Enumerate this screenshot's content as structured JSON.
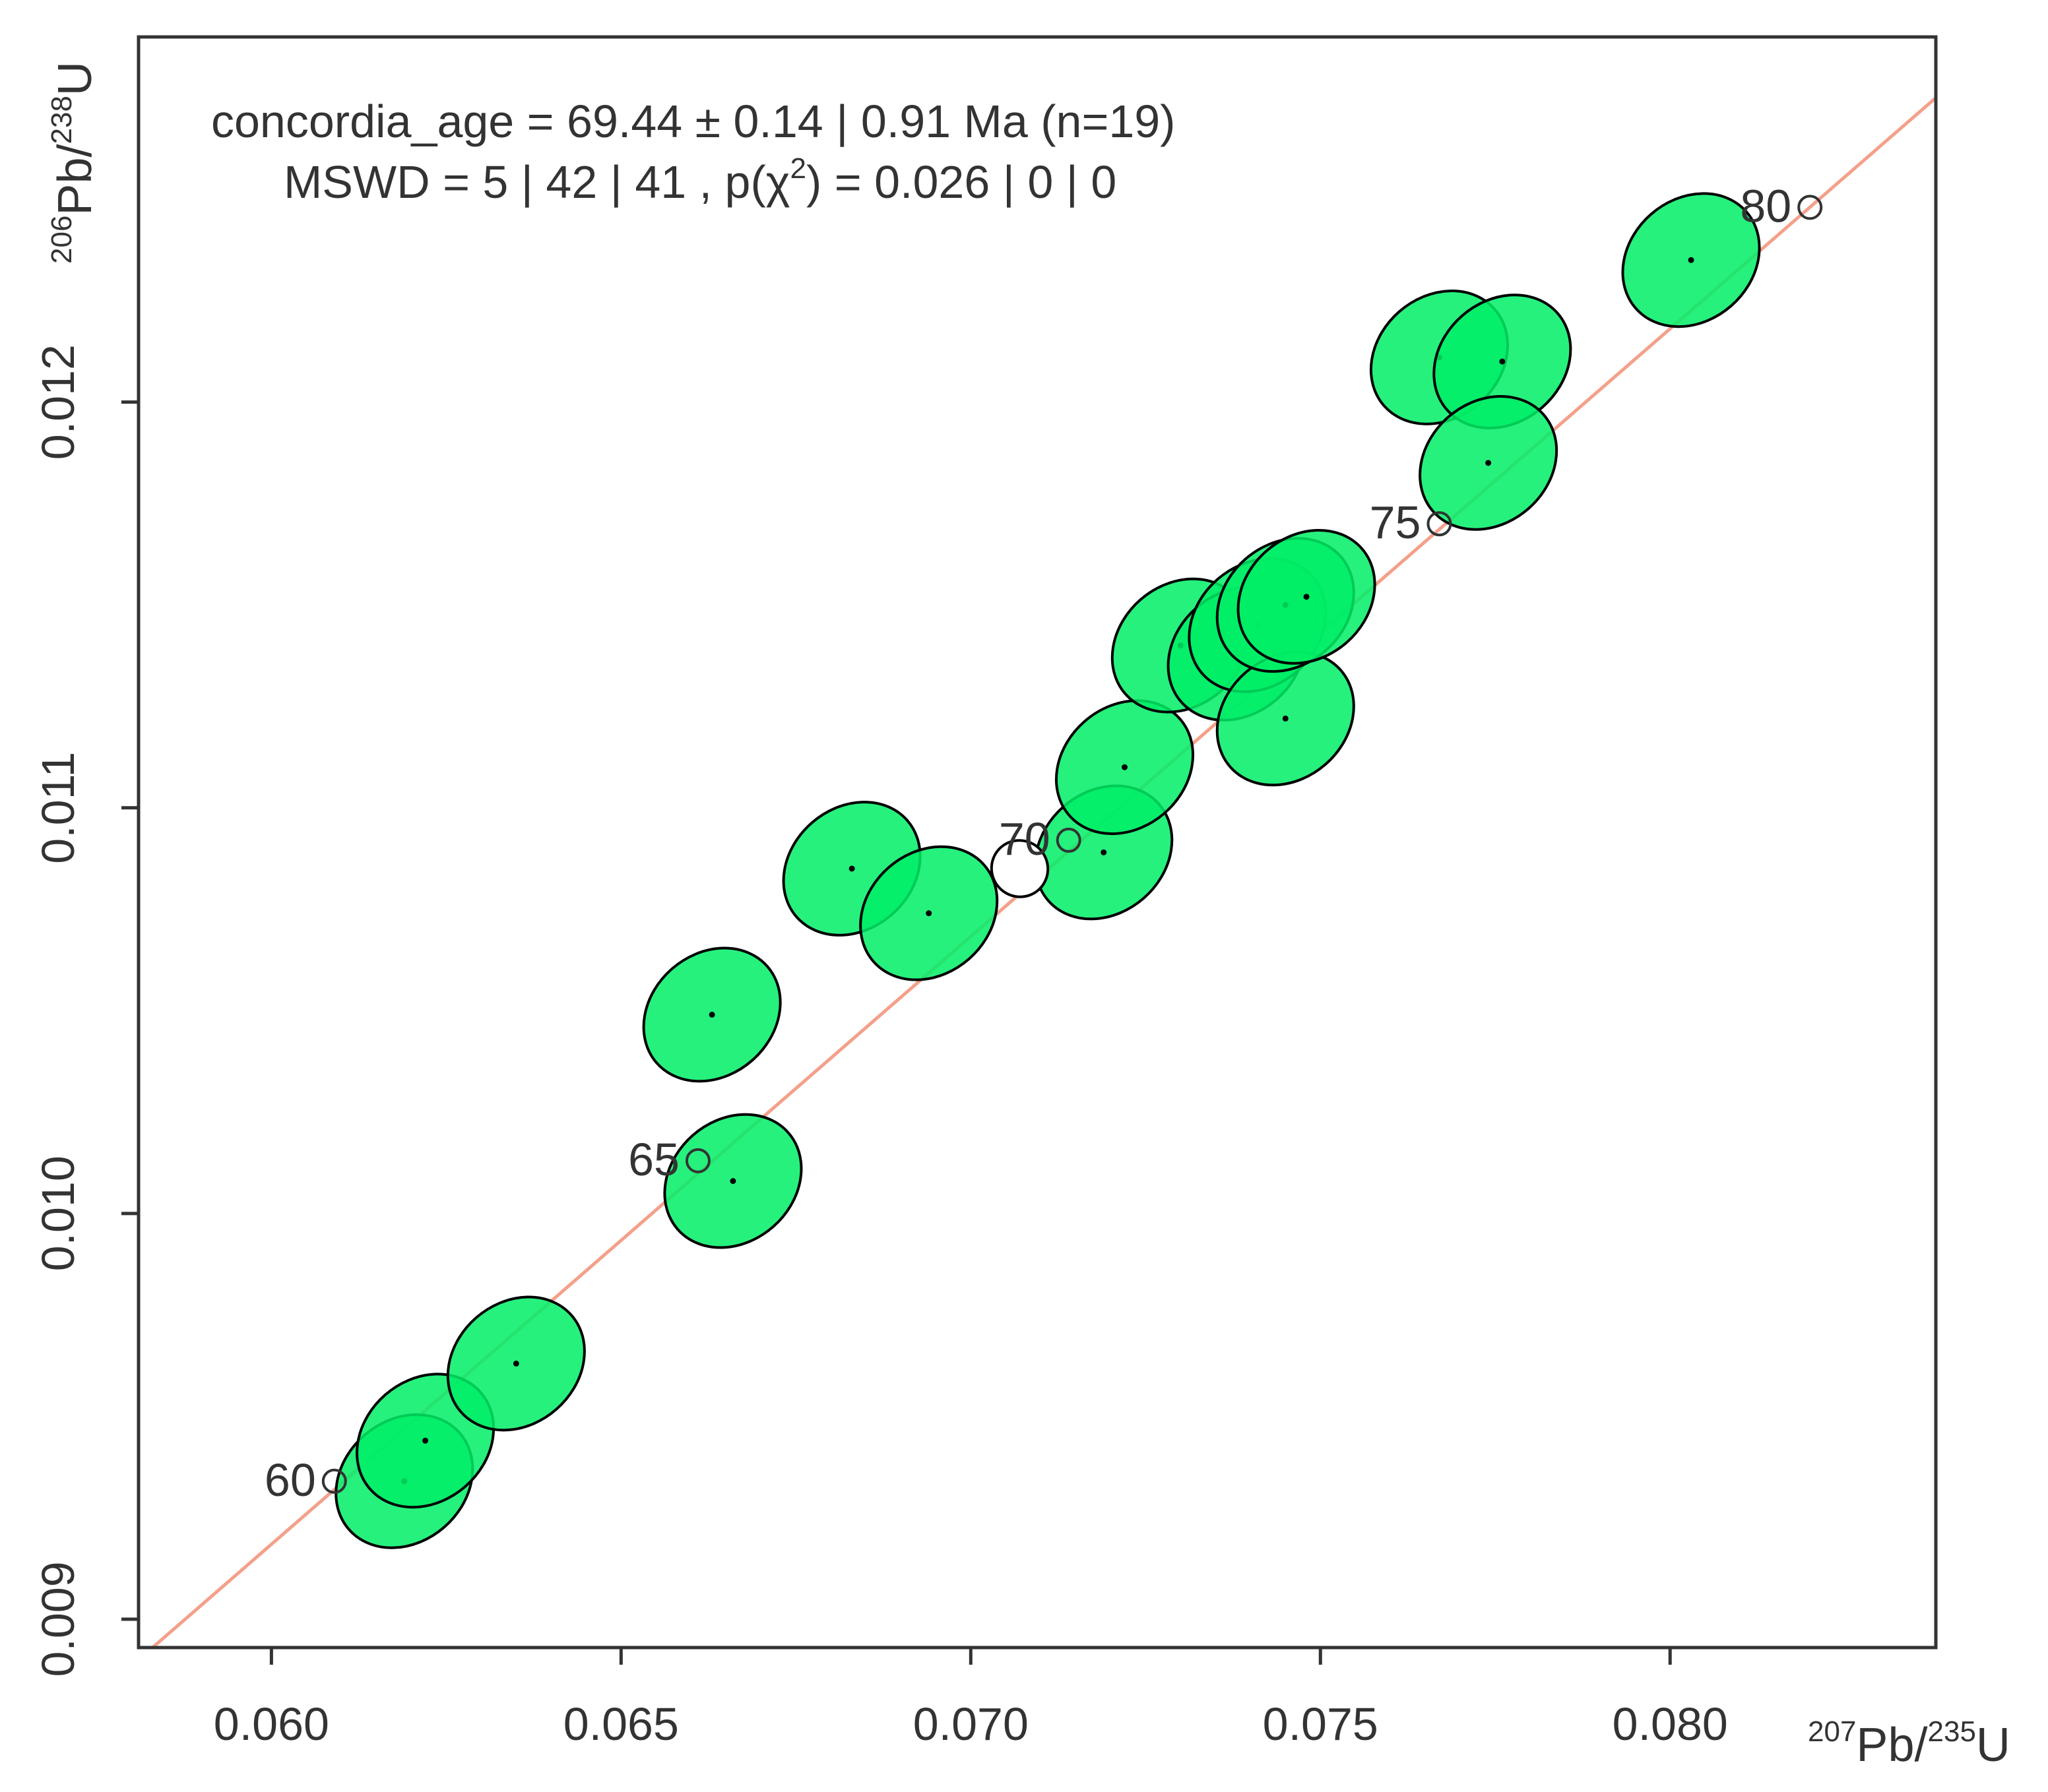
{
  "chart_data": {
    "type": "scatter",
    "subtype": "concordia error ellipses",
    "annotation": {
      "line1": "concordia_age = 69.44 ± 0.14 | 0.91 Ma (n=19)",
      "line2": "MSWD = 5 | 42 | 41 , p(χ",
      "line2_sup": "2",
      "line2_end": ") = 0.026 | 0 | 0"
    },
    "xlabel": {
      "sup1": "207",
      "base1": "Pb/",
      "sup2": "235",
      "base2": "U"
    },
    "ylabel": {
      "sup1": "206",
      "base1": "Pb/",
      "sup2": "238",
      "base2": "U"
    },
    "xlim": [
      0.0581,
      0.0838
    ],
    "ylim": [
      0.00893,
      0.0129
    ],
    "xticks": [
      0.06,
      0.065,
      0.07,
      0.075,
      0.08
    ],
    "xtick_labels": [
      "0.060",
      "0.065",
      "0.070",
      "0.075",
      "0.080"
    ],
    "yticks": [
      0.009,
      0.01,
      0.011,
      0.012
    ],
    "ytick_labels": [
      "0.009",
      "0.010",
      "0.011",
      "0.012"
    ],
    "grid": false,
    "colors": {
      "ellipse_fill": "#00ee66",
      "ellipse_stroke": "#000000",
      "concordia_line": "#f4a08a",
      "concordia_age_fill": "#ffffff",
      "text": "#333333"
    },
    "concordia_line": {
      "x": [
        0.0581,
        0.0838
      ],
      "y": [
        0.0089,
        0.01275
      ]
    },
    "age_markers": [
      {
        "label": "60",
        "x": 0.0609,
        "y": 0.00934
      },
      {
        "label": "65",
        "x": 0.0661,
        "y": 0.01013
      },
      {
        "label": "70",
        "x": 0.0714,
        "y": 0.01092
      },
      {
        "label": "75",
        "x": 0.0767,
        "y": 0.0117
      },
      {
        "label": "80",
        "x": 0.082,
        "y": 0.01248
      }
    ],
    "concordia_age_ellipse": {
      "x": 0.0707,
      "y": 0.01085,
      "rx": 0.0004,
      "ry": 7e-05
    },
    "ellipses": [
      {
        "x": 0.0619,
        "y": 0.00934,
        "rx": 0.00105,
        "ry": 0.00015
      },
      {
        "x": 0.0622,
        "y": 0.00944,
        "rx": 0.00105,
        "ry": 0.00015
      },
      {
        "x": 0.0635,
        "y": 0.00963,
        "rx": 0.00105,
        "ry": 0.00015
      },
      {
        "x": 0.0666,
        "y": 0.01008,
        "rx": 0.00105,
        "ry": 0.00015
      },
      {
        "x": 0.0663,
        "y": 0.01049,
        "rx": 0.00105,
        "ry": 0.00015
      },
      {
        "x": 0.0683,
        "y": 0.01085,
        "rx": 0.00105,
        "ry": 0.00015
      },
      {
        "x": 0.0694,
        "y": 0.01074,
        "rx": 0.00105,
        "ry": 0.00015
      },
      {
        "x": 0.0719,
        "y": 0.01089,
        "rx": 0.00105,
        "ry": 0.00015
      },
      {
        "x": 0.0722,
        "y": 0.0111,
        "rx": 0.00105,
        "ry": 0.00015
      },
      {
        "x": 0.073,
        "y": 0.0114,
        "rx": 0.00105,
        "ry": 0.00015
      },
      {
        "x": 0.0738,
        "y": 0.01138,
        "rx": 0.00105,
        "ry": 0.00015
      },
      {
        "x": 0.0741,
        "y": 0.01145,
        "rx": 0.00105,
        "ry": 0.00015
      },
      {
        "x": 0.0745,
        "y": 0.01122,
        "rx": 0.00105,
        "ry": 0.00015
      },
      {
        "x": 0.0745,
        "y": 0.0115,
        "rx": 0.00105,
        "ry": 0.00015
      },
      {
        "x": 0.0748,
        "y": 0.01152,
        "rx": 0.00105,
        "ry": 0.00015
      },
      {
        "x": 0.0767,
        "y": 0.01211,
        "rx": 0.00105,
        "ry": 0.00015
      },
      {
        "x": 0.0776,
        "y": 0.0121,
        "rx": 0.00105,
        "ry": 0.00015
      },
      {
        "x": 0.0774,
        "y": 0.01185,
        "rx": 0.00105,
        "ry": 0.00015
      },
      {
        "x": 0.0803,
        "y": 0.01235,
        "rx": 0.00105,
        "ry": 0.00015
      }
    ]
  }
}
